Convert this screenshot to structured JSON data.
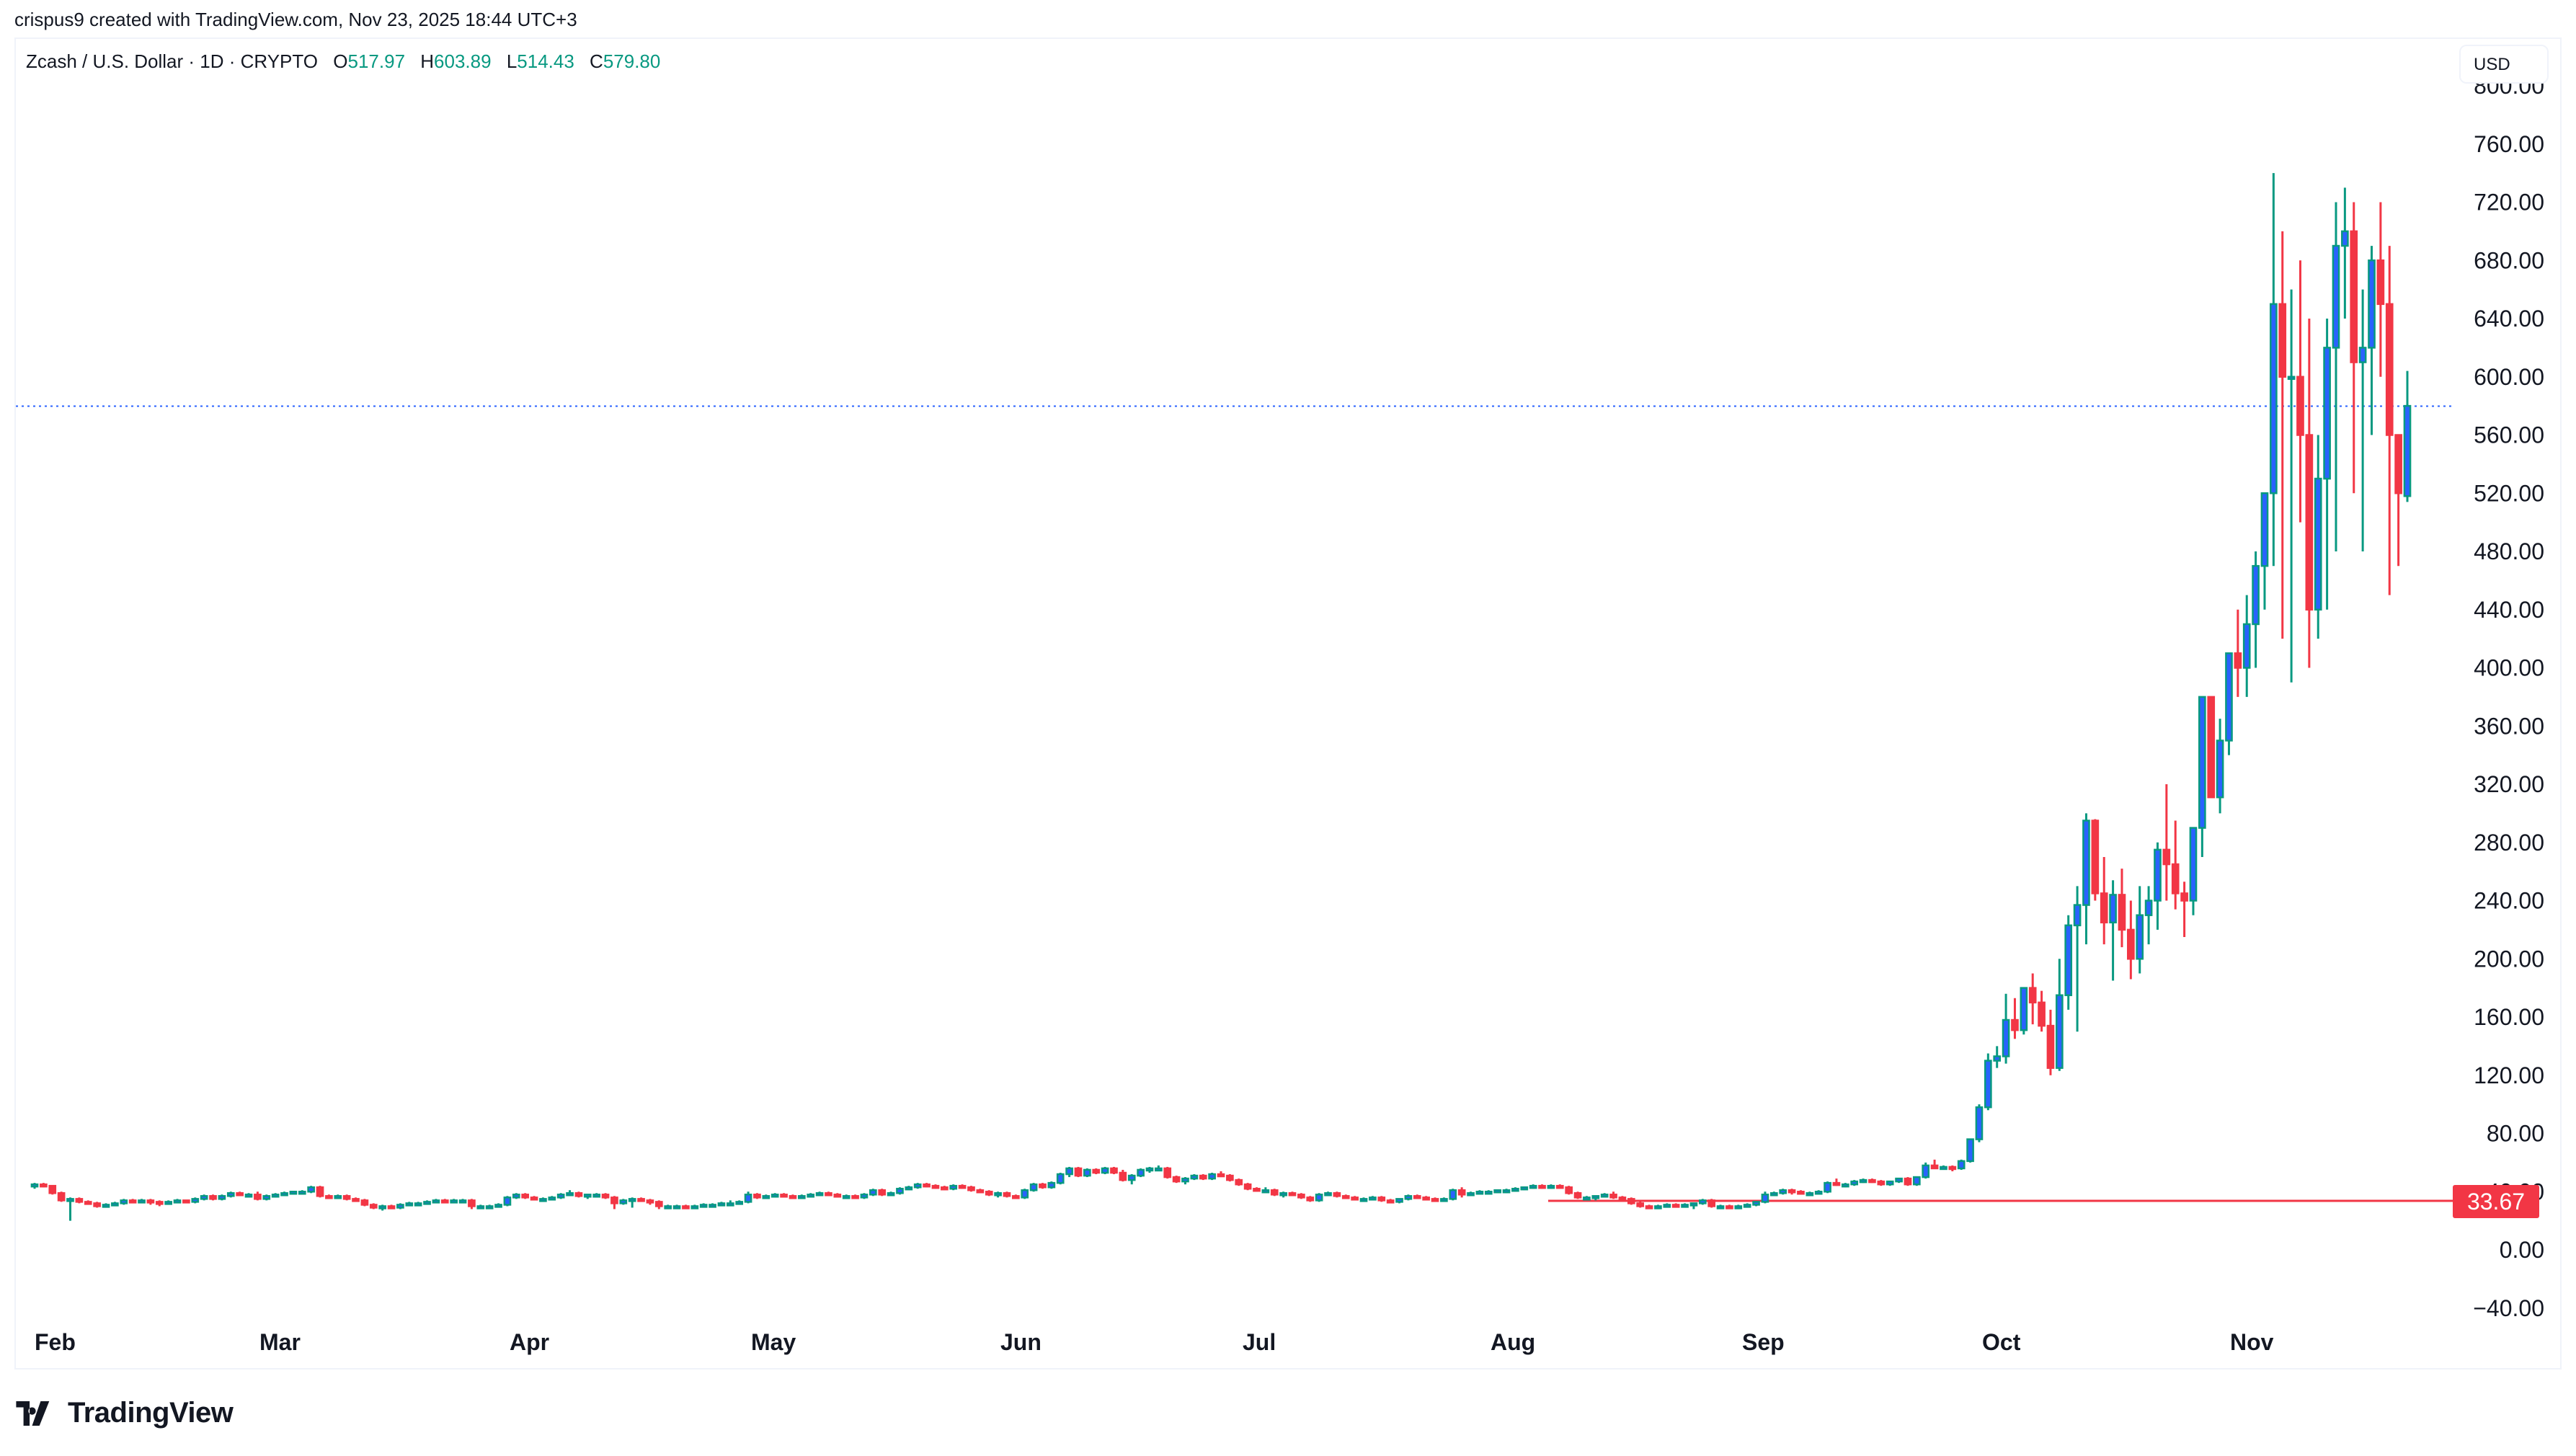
{
  "credit": "crispus9 created with TradingView.com, Nov 23, 2025 18:44 UTC+3",
  "legend": {
    "symbol": "Zcash / U.S. Dollar · 1D · CRYPTO",
    "o_label": "O",
    "o": "517.97",
    "h_label": "H",
    "h": "603.89",
    "l_label": "L",
    "l": "514.43",
    "c_label": "C",
    "c": "579.80"
  },
  "currency_button": "USD",
  "horizontal_line_label": "33.67",
  "logo": "TradingView",
  "colors": {
    "up_body": "#2962ff",
    "up_wick": "#089981",
    "down": "#f23645",
    "last_price_line": "#2962ff",
    "hline": "#f23645"
  },
  "chart_data": {
    "type": "candlestick",
    "title": "Zcash / U.S. Dollar · 1D · CRYPTO",
    "xlabel": "",
    "ylabel": "USD",
    "ylim": [
      -40,
      800
    ],
    "y_ticks": [
      "800.00",
      "760.00",
      "720.00",
      "680.00",
      "640.00",
      "600.00",
      "560.00",
      "520.00",
      "480.00",
      "440.00",
      "400.00",
      "360.00",
      "320.00",
      "280.00",
      "240.00",
      "200.00",
      "160.00",
      "120.00",
      "80.00",
      "40.00",
      "0.00",
      "-40.00"
    ],
    "x_ticks": [
      "Feb",
      "Mar",
      "Apr",
      "May",
      "Jun",
      "Jul",
      "Aug",
      "Sep",
      "Oct",
      "Nov"
    ],
    "last_price": 579.8,
    "horizontal_line": 33.67,
    "grid": false,
    "start_date": "2025-02-01",
    "ohlc": [
      [
        44,
        46,
        42,
        45
      ],
      [
        45,
        46,
        43,
        44
      ],
      [
        44,
        44,
        38,
        39
      ],
      [
        39,
        40,
        33,
        34
      ],
      [
        34,
        36,
        20,
        35
      ],
      [
        35,
        36,
        32,
        33
      ],
      [
        33,
        34,
        31,
        32
      ],
      [
        32,
        33,
        29,
        30
      ],
      [
        30,
        32,
        29,
        31
      ],
      [
        31,
        33,
        30,
        32
      ],
      [
        32,
        35,
        31,
        34
      ],
      [
        34,
        35,
        32,
        33
      ],
      [
        33,
        35,
        32,
        34
      ],
      [
        34,
        35,
        31,
        33
      ],
      [
        33,
        34,
        30,
        32
      ],
      [
        32,
        34,
        31,
        33
      ],
      [
        33,
        35,
        32,
        34
      ],
      [
        34,
        34,
        32,
        33
      ],
      [
        33,
        36,
        32,
        35
      ],
      [
        35,
        38,
        34,
        37
      ],
      [
        37,
        38,
        34,
        35
      ],
      [
        35,
        38,
        34,
        37
      ],
      [
        37,
        40,
        36,
        39
      ],
      [
        39,
        40,
        37,
        38
      ],
      [
        38,
        39,
        37,
        38
      ],
      [
        38,
        40,
        34,
        35
      ],
      [
        35,
        38,
        34,
        37
      ],
      [
        37,
        39,
        36,
        38
      ],
      [
        38,
        40,
        37,
        39
      ],
      [
        39,
        40,
        38,
        40
      ],
      [
        40,
        41,
        39,
        40
      ],
      [
        40,
        44,
        39,
        43
      ],
      [
        43,
        44,
        36,
        37
      ],
      [
        37,
        38,
        35,
        36
      ],
      [
        36,
        38,
        35,
        37
      ],
      [
        37,
        38,
        34,
        35
      ],
      [
        35,
        36,
        33,
        34
      ],
      [
        34,
        35,
        30,
        31
      ],
      [
        31,
        32,
        28,
        29
      ],
      [
        29,
        31,
        27,
        30
      ],
      [
        30,
        31,
        28,
        29
      ],
      [
        29,
        32,
        28,
        31
      ],
      [
        31,
        33,
        30,
        32
      ],
      [
        32,
        33,
        31,
        32
      ],
      [
        32,
        34,
        31,
        33
      ],
      [
        33,
        35,
        32,
        34
      ],
      [
        34,
        35,
        32,
        33
      ],
      [
        33,
        35,
        32,
        34
      ],
      [
        34,
        35,
        33,
        34
      ],
      [
        34,
        35,
        28,
        30
      ],
      [
        30,
        31,
        28,
        30
      ],
      [
        30,
        31,
        29,
        30
      ],
      [
        30,
        32,
        29,
        31
      ],
      [
        31,
        37,
        30,
        36
      ],
      [
        36,
        39,
        35,
        38
      ],
      [
        38,
        39,
        35,
        36
      ],
      [
        36,
        37,
        34,
        35
      ],
      [
        35,
        36,
        34,
        35
      ],
      [
        35,
        37,
        34,
        36
      ],
      [
        36,
        39,
        35,
        38
      ],
      [
        38,
        41,
        37,
        39
      ],
      [
        39,
        40,
        36,
        37
      ],
      [
        37,
        38,
        35,
        38
      ],
      [
        38,
        39,
        36,
        38
      ],
      [
        38,
        39,
        35,
        36
      ],
      [
        36,
        37,
        28,
        32
      ],
      [
        32,
        35,
        31,
        34
      ],
      [
        34,
        36,
        29,
        35
      ],
      [
        35,
        36,
        33,
        34
      ],
      [
        34,
        35,
        31,
        33
      ],
      [
        33,
        34,
        28,
        30
      ],
      [
        30,
        31,
        28,
        30
      ],
      [
        30,
        31,
        29,
        30
      ],
      [
        30,
        31,
        28,
        29
      ],
      [
        29,
        31,
        28,
        30
      ],
      [
        30,
        32,
        29,
        31
      ],
      [
        31,
        32,
        30,
        31
      ],
      [
        31,
        33,
        30,
        32
      ],
      [
        32,
        34,
        31,
        32
      ],
      [
        32,
        34,
        31,
        33
      ],
      [
        33,
        40,
        32,
        38
      ],
      [
        38,
        39,
        35,
        36
      ],
      [
        36,
        38,
        35,
        37
      ],
      [
        37,
        39,
        36,
        38
      ],
      [
        38,
        39,
        36,
        37
      ],
      [
        37,
        38,
        35,
        36
      ],
      [
        36,
        38,
        35,
        37
      ],
      [
        37,
        39,
        36,
        38
      ],
      [
        38,
        40,
        37,
        39
      ],
      [
        39,
        40,
        37,
        38
      ],
      [
        38,
        39,
        36,
        37
      ],
      [
        37,
        38,
        36,
        37
      ],
      [
        37,
        38,
        35,
        36
      ],
      [
        36,
        39,
        35,
        38
      ],
      [
        38,
        42,
        37,
        41
      ],
      [
        41,
        42,
        37,
        38
      ],
      [
        38,
        40,
        37,
        39
      ],
      [
        39,
        43,
        38,
        42
      ],
      [
        42,
        44,
        41,
        43
      ],
      [
        43,
        46,
        42,
        45
      ],
      [
        45,
        46,
        43,
        44
      ],
      [
        44,
        45,
        42,
        43
      ],
      [
        43,
        44,
        41,
        42
      ],
      [
        42,
        45,
        41,
        44
      ],
      [
        44,
        45,
        42,
        43
      ],
      [
        43,
        44,
        40,
        41
      ],
      [
        41,
        42,
        39,
        40
      ],
      [
        40,
        41,
        37,
        38
      ],
      [
        38,
        40,
        36,
        39
      ],
      [
        39,
        40,
        36,
        37
      ],
      [
        37,
        38,
        35,
        36
      ],
      [
        36,
        42,
        35,
        41
      ],
      [
        41,
        46,
        40,
        45
      ],
      [
        45,
        46,
        42,
        43
      ],
      [
        43,
        47,
        42,
        46
      ],
      [
        46,
        53,
        45,
        52
      ],
      [
        52,
        57,
        50,
        56
      ],
      [
        56,
        57,
        50,
        51
      ],
      [
        51,
        56,
        50,
        55
      ],
      [
        55,
        56,
        52,
        53
      ],
      [
        53,
        57,
        52,
        56
      ],
      [
        56,
        57,
        52,
        53
      ],
      [
        53,
        55,
        47,
        48
      ],
      [
        48,
        52,
        45,
        51
      ],
      [
        51,
        56,
        50,
        55
      ],
      [
        55,
        57,
        53,
        56
      ],
      [
        56,
        58,
        54,
        56
      ],
      [
        56,
        57,
        49,
        50
      ],
      [
        50,
        51,
        46,
        47
      ],
      [
        47,
        50,
        45,
        49
      ],
      [
        49,
        52,
        48,
        51
      ],
      [
        51,
        52,
        48,
        49
      ],
      [
        49,
        53,
        48,
        52
      ],
      [
        52,
        54,
        50,
        51
      ],
      [
        51,
        52,
        47,
        48
      ],
      [
        48,
        49,
        44,
        45
      ],
      [
        45,
        46,
        41,
        42
      ],
      [
        42,
        43,
        40,
        41
      ],
      [
        41,
        43,
        40,
        41
      ],
      [
        41,
        42,
        37,
        38
      ],
      [
        38,
        40,
        36,
        39
      ],
      [
        39,
        40,
        37,
        38
      ],
      [
        38,
        39,
        35,
        36
      ],
      [
        36,
        37,
        33,
        34
      ],
      [
        34,
        39,
        33,
        38
      ],
      [
        38,
        40,
        37,
        39
      ],
      [
        39,
        40,
        36,
        37
      ],
      [
        37,
        38,
        35,
        36
      ],
      [
        36,
        37,
        34,
        35
      ],
      [
        35,
        36,
        34,
        35
      ],
      [
        35,
        37,
        34,
        36
      ],
      [
        36,
        37,
        33,
        34
      ],
      [
        34,
        35,
        32,
        33
      ],
      [
        33,
        35,
        32,
        35
      ],
      [
        35,
        38,
        34,
        37
      ],
      [
        37,
        38,
        35,
        36
      ],
      [
        36,
        37,
        34,
        35
      ],
      [
        35,
        36,
        33,
        34
      ],
      [
        34,
        36,
        33,
        35
      ],
      [
        35,
        42,
        34,
        41
      ],
      [
        41,
        43,
        36,
        38
      ],
      [
        38,
        40,
        37,
        39
      ],
      [
        39,
        41,
        38,
        40
      ],
      [
        40,
        41,
        38,
        40
      ],
      [
        40,
        41,
        39,
        41
      ],
      [
        41,
        42,
        39,
        41
      ],
      [
        41,
        43,
        40,
        42
      ],
      [
        42,
        43,
        41,
        43
      ],
      [
        43,
        45,
        42,
        44
      ],
      [
        44,
        45,
        42,
        43
      ],
      [
        43,
        45,
        42,
        44
      ],
      [
        44,
        45,
        43,
        43
      ],
      [
        43,
        44,
        38,
        39
      ],
      [
        39,
        40,
        35,
        36
      ],
      [
        36,
        37,
        34,
        36
      ],
      [
        36,
        37,
        34,
        37
      ],
      [
        37,
        39,
        36,
        38
      ],
      [
        38,
        40,
        35,
        36
      ],
      [
        36,
        37,
        34,
        35
      ],
      [
        35,
        36,
        31,
        32
      ],
      [
        32,
        33,
        29,
        30
      ],
      [
        30,
        31,
        28,
        29
      ],
      [
        29,
        31,
        28,
        30
      ],
      [
        30,
        32,
        29,
        31
      ],
      [
        31,
        32,
        29,
        30
      ],
      [
        30,
        32,
        29,
        31
      ],
      [
        31,
        32,
        28,
        32
      ],
      [
        32,
        35,
        31,
        34
      ],
      [
        34,
        35,
        29,
        30
      ],
      [
        30,
        31,
        29,
        30
      ],
      [
        30,
        31,
        28,
        29
      ],
      [
        29,
        31,
        28,
        30
      ],
      [
        30,
        32,
        29,
        31
      ],
      [
        31,
        33,
        30,
        33
      ],
      [
        33,
        40,
        32,
        38
      ],
      [
        38,
        40,
        37,
        39
      ],
      [
        39,
        42,
        38,
        41
      ],
      [
        41,
        42,
        38,
        40
      ],
      [
        40,
        41,
        38,
        39
      ],
      [
        39,
        40,
        38,
        39
      ],
      [
        39,
        41,
        38,
        40
      ],
      [
        40,
        47,
        39,
        46
      ],
      [
        46,
        49,
        44,
        45
      ],
      [
        45,
        46,
        43,
        45
      ],
      [
        45,
        48,
        44,
        47
      ],
      [
        47,
        49,
        46,
        48
      ],
      [
        48,
        49,
        46,
        47
      ],
      [
        47,
        48,
        44,
        45
      ],
      [
        45,
        47,
        44,
        47
      ],
      [
        47,
        49,
        46,
        49
      ],
      [
        49,
        50,
        44,
        45
      ],
      [
        45,
        50,
        44,
        50
      ],
      [
        50,
        60,
        49,
        58
      ],
      [
        58,
        62,
        56,
        56
      ],
      [
        56,
        58,
        55,
        57
      ],
      [
        57,
        58,
        54,
        56
      ],
      [
        56,
        62,
        55,
        61
      ],
      [
        61,
        71,
        60,
        76
      ],
      [
        76,
        100,
        74,
        98
      ],
      [
        98,
        135,
        96,
        130
      ],
      [
        130,
        140,
        125,
        133
      ],
      [
        133,
        176,
        128,
        158
      ],
      [
        158,
        173,
        145,
        151
      ],
      [
        151,
        180,
        148,
        180
      ],
      [
        180,
        190,
        155,
        170
      ],
      [
        170,
        178,
        150,
        154
      ],
      [
        154,
        165,
        120,
        125
      ],
      [
        125,
        200,
        123,
        175
      ],
      [
        175,
        230,
        165,
        223
      ],
      [
        223,
        250,
        150,
        237
      ],
      [
        237,
        300,
        210,
        295
      ],
      [
        295,
        296,
        240,
        245
      ],
      [
        245,
        270,
        210,
        225
      ],
      [
        225,
        254,
        185,
        244
      ],
      [
        244,
        262,
        208,
        220
      ],
      [
        220,
        240,
        186,
        200
      ],
      [
        200,
        250,
        190,
        230
      ],
      [
        230,
        250,
        210,
        240
      ],
      [
        240,
        280,
        220,
        275
      ],
      [
        275,
        320,
        240,
        265
      ],
      [
        265,
        295,
        234,
        245
      ],
      [
        245,
        253,
        215,
        240
      ],
      [
        240,
        290,
        230,
        290
      ],
      [
        290,
        360,
        270,
        380
      ],
      [
        380,
        380,
        311,
        311
      ],
      [
        311,
        365,
        300,
        350
      ],
      [
        350,
        410,
        340,
        410
      ],
      [
        410,
        440,
        380,
        400
      ],
      [
        400,
        450,
        380,
        430
      ],
      [
        430,
        480,
        400,
        470
      ],
      [
        470,
        520,
        440,
        520
      ],
      [
        520,
        740,
        470,
        650
      ],
      [
        650,
        700,
        420,
        600
      ],
      [
        600,
        660,
        390,
        600
      ],
      [
        600,
        680,
        500,
        560
      ],
      [
        560,
        640,
        400,
        440
      ],
      [
        440,
        560,
        420,
        530
      ],
      [
        530,
        640,
        440,
        620
      ],
      [
        620,
        720,
        480,
        690
      ],
      [
        690,
        730,
        640,
        700
      ],
      [
        700,
        720,
        520,
        610
      ],
      [
        610,
        660,
        480,
        620
      ],
      [
        620,
        690,
        560,
        680
      ],
      [
        680,
        720,
        600,
        650
      ],
      [
        650,
        690,
        450,
        560
      ],
      [
        560,
        560,
        470,
        520
      ],
      [
        518,
        604,
        514,
        580
      ]
    ]
  }
}
